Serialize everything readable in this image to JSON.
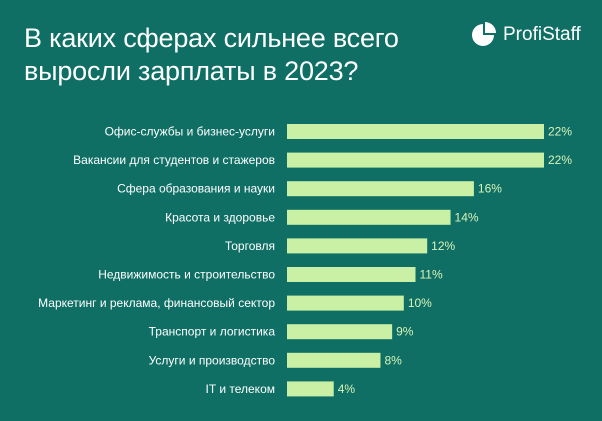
{
  "header": {
    "title_lines": [
      "В каких сферах сильнее всего",
      "выросли зарплаты в 2023?"
    ],
    "brand": "ProfiStaff",
    "logo_icon": "pie-chart-icon"
  },
  "colors": {
    "background": "#0f6f65",
    "bar": "#c9f0a5",
    "value_text": "#d9f3b7",
    "text": "#ffffff"
  },
  "chart_data": {
    "type": "bar",
    "orientation": "horizontal",
    "value_suffix": "%",
    "categories": [
      "Офис-службы и бизнес-услуги",
      "Вакансии для студентов и стажеров",
      "Сфера образования и науки",
      "Красота и здоровье",
      "Торговля",
      "Недвижимость и строительство",
      "Маркетинг и реклама, финансовый сектор",
      "Транспорт и логистика",
      "Услуги и производство",
      "IT и телеком"
    ],
    "values": [
      22,
      22,
      16,
      14,
      12,
      11,
      10,
      9,
      8,
      4
    ],
    "value_labels": [
      "22%",
      "22%",
      "16%",
      "14%",
      "12%",
      "11%",
      "10%",
      "9%",
      "8%",
      "4%"
    ],
    "xlim": [
      0,
      22
    ],
    "grid": false,
    "legend": "none"
  }
}
